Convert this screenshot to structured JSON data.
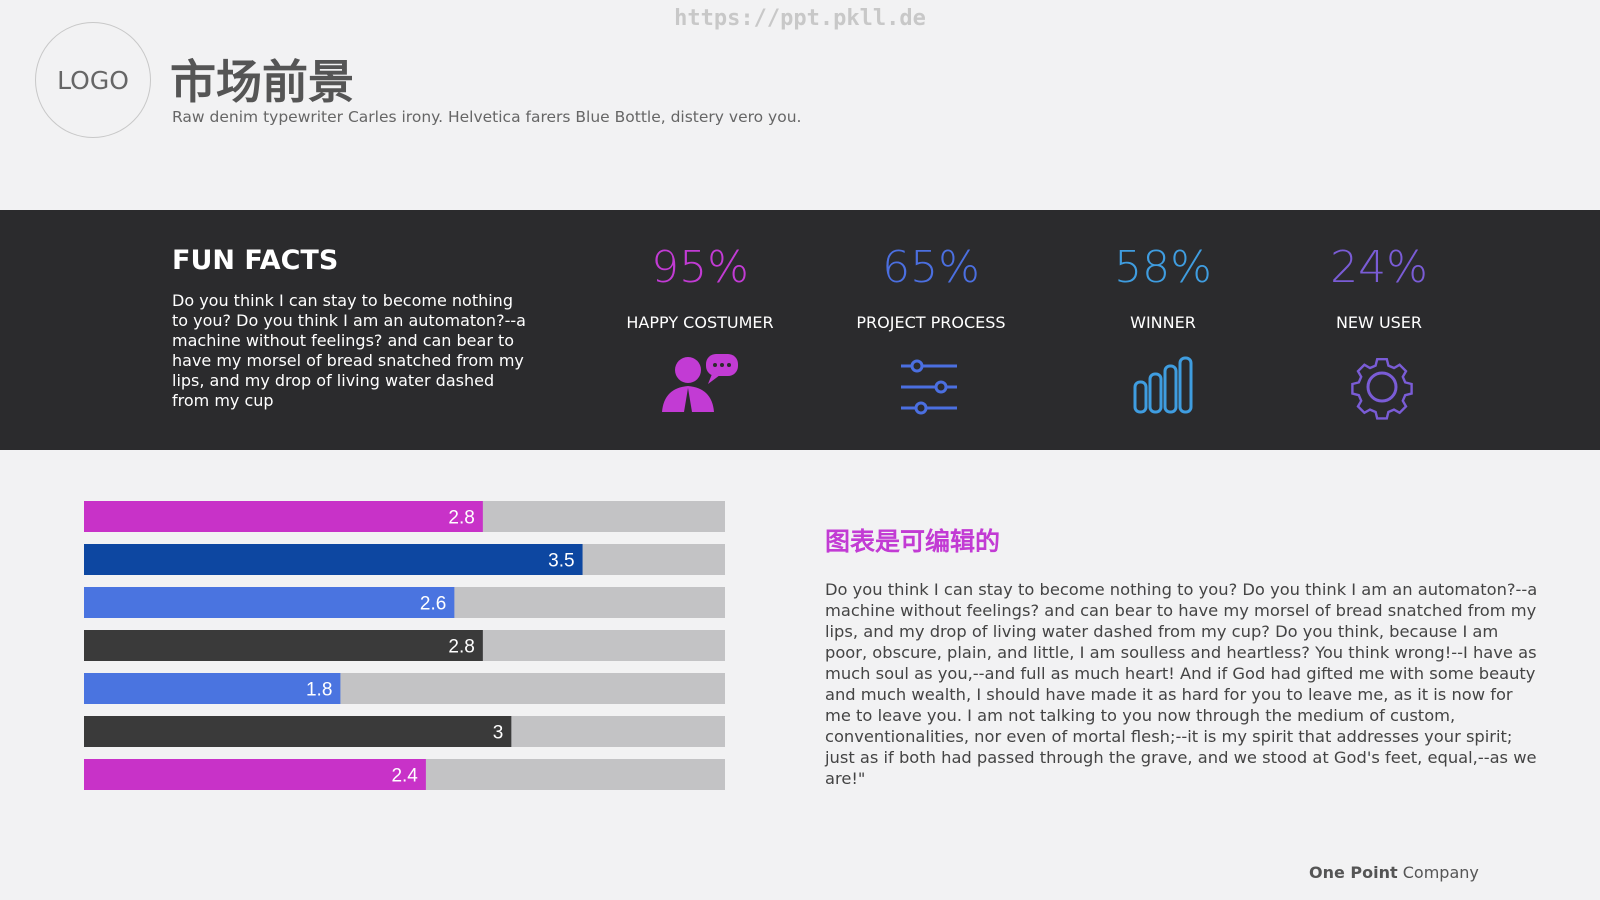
{
  "watermark": "https://ppt.pkll.de",
  "header": {
    "logo": "LOGO",
    "title": "市场前景",
    "subtitle": "Raw denim typewriter Carles irony. Helvetica farers Blue Bottle, distery vero you."
  },
  "fun_facts": {
    "title": "FUN FACTS",
    "text": "Do you think I can stay to become nothing to you? Do you think I am an automaton?--a machine without feelings? and can bear to have my morsel of bread snatched from my lips, and my drop of living water dashed from my cup"
  },
  "stats": [
    {
      "value": "95%",
      "label": "HAPPY COSTUMER",
      "color": "#c23bd4"
    },
    {
      "value": "65%",
      "label": "PROJECT PROCESS",
      "color": "#4b6fe0"
    },
    {
      "value": "58%",
      "label": "WINNER",
      "color": "#3f9de0"
    },
    {
      "value": "24%",
      "label": "NEW USER",
      "color": "#7a5cd6"
    }
  ],
  "chart_data": {
    "type": "bar",
    "orientation": "horizontal",
    "values": [
      2.8,
      3.5,
      2.6,
      2.8,
      1.8,
      3,
      2.4
    ],
    "colors": [
      "#c832c8",
      "#0d47a1",
      "#4a74e0",
      "#3a3a3a",
      "#4a74e0",
      "#3a3a3a",
      "#c832c8"
    ],
    "track_color": "#c3c3c5",
    "xlim": [
      0,
      4.5
    ]
  },
  "note": {
    "title": "图表是可编辑的",
    "text": "Do you think I can stay to become nothing to you? Do you think I am an automaton?--a machine without feelings? and can bear to have my morsel of bread snatched from my lips, and my drop of living water dashed from my cup? Do you think, because I am poor, obscure, plain, and little, I am soulless and heartless? You think wrong!--I have as much soul as you,--and full as much heart! And if God had gifted me with some beauty and much wealth, I should have made it as hard for you to leave me, as it is now for me to leave you. I am not talking to you now through the medium of custom, conventionalities, nor even of mortal flesh;--it is my spirit that addresses your spirit; just as if both had passed through the grave, and we stood at God's feet, equal,--as we are!\""
  },
  "footer": {
    "bold": "One Point",
    "rest": "Company"
  }
}
